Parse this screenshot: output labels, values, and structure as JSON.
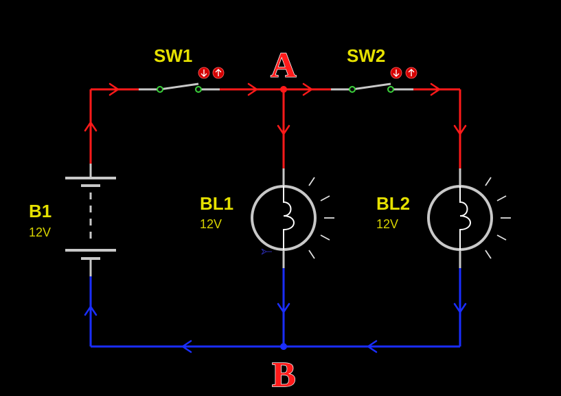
{
  "colors": {
    "background": "#000000",
    "positive_wire": "#ff1a1a",
    "negative_wire": "#1a2eff",
    "component": "#c8c8c8",
    "label": "#e6e100"
  },
  "nodes": {
    "a": "A",
    "b": "B"
  },
  "battery": {
    "name": "B1",
    "voltage": "12V"
  },
  "switches": [
    {
      "name": "SW1",
      "down_icon": "arrow-down-icon",
      "up_icon": "arrow-up-icon"
    },
    {
      "name": "SW2",
      "down_icon": "arrow-down-icon",
      "up_icon": "arrow-up-icon"
    }
  ],
  "lamps": [
    {
      "name": "BL1",
      "voltage": "12V",
      "state": "lit"
    },
    {
      "name": "BL2",
      "voltage": "12V",
      "state": "lit"
    }
  ]
}
